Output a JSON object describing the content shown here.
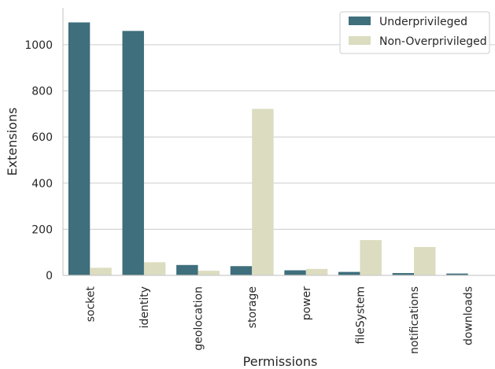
{
  "chart_data": {
    "type": "bar",
    "title": "",
    "xlabel": "Permissions",
    "ylabel": "Extensions",
    "categories": [
      "socket",
      "identity",
      "geolocation",
      "storage",
      "power",
      "fileSystem",
      "notifications",
      "downloads"
    ],
    "series": [
      {
        "name": "Underprivileged",
        "color": "#3f6e7c",
        "values": [
          1097,
          1060,
          45,
          40,
          22,
          15,
          10,
          8
        ]
      },
      {
        "name": "Non-Overprivileged",
        "color": "#dcdcc0",
        "values": [
          33,
          57,
          20,
          722,
          28,
          153,
          123,
          0
        ]
      }
    ],
    "ylim": [
      0,
      1160
    ],
    "yticks": [
      0,
      200,
      400,
      600,
      800,
      1000
    ],
    "grid": "horizontal",
    "legend_position": "top-right"
  }
}
